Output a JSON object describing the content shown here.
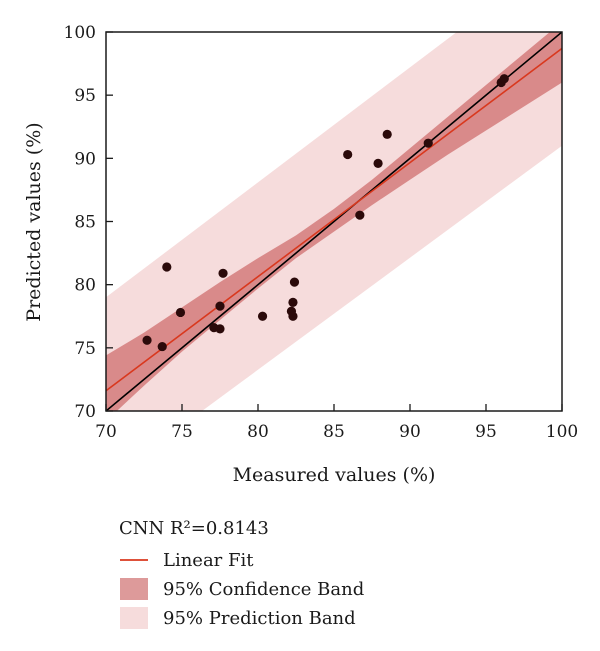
{
  "chart_data": {
    "type": "scatter",
    "xlabel": "Measured values (%)",
    "ylabel": "Predicted values (%)",
    "xlim": [
      70,
      100
    ],
    "ylim": [
      70,
      100
    ],
    "xticks": [
      "70",
      "75",
      "80",
      "85",
      "90",
      "95",
      "100"
    ],
    "yticks": [
      "70",
      "75",
      "80",
      "85",
      "90",
      "95",
      "100"
    ],
    "grid": false,
    "legend_position": "bottom-left, below plot",
    "legend_title": "CNN R²=0.8143",
    "points": [
      {
        "x": 72.7,
        "y": 75.6
      },
      {
        "x": 73.7,
        "y": 75.1
      },
      {
        "x": 74.0,
        "y": 81.4
      },
      {
        "x": 74.9,
        "y": 77.8
      },
      {
        "x": 77.1,
        "y": 76.6
      },
      {
        "x": 77.5,
        "y": 76.5
      },
      {
        "x": 77.5,
        "y": 78.3
      },
      {
        "x": 77.7,
        "y": 80.9
      },
      {
        "x": 80.3,
        "y": 77.5
      },
      {
        "x": 82.2,
        "y": 77.9
      },
      {
        "x": 82.3,
        "y": 77.5
      },
      {
        "x": 82.3,
        "y": 78.6
      },
      {
        "x": 82.4,
        "y": 80.2
      },
      {
        "x": 85.9,
        "y": 90.3
      },
      {
        "x": 86.7,
        "y": 85.5
      },
      {
        "x": 87.9,
        "y": 89.6
      },
      {
        "x": 88.5,
        "y": 91.9
      },
      {
        "x": 91.2,
        "y": 91.2
      },
      {
        "x": 96.0,
        "y": 96.0
      },
      {
        "x": 96.2,
        "y": 96.3
      }
    ],
    "identity_line": {
      "x": [
        70,
        100
      ],
      "y": [
        70,
        100
      ]
    },
    "linear_fit": {
      "x": [
        70,
        100
      ],
      "y": [
        71.6,
        98.7
      ]
    },
    "confidence_band": {
      "x": [
        70,
        72.5,
        75,
        77.5,
        80,
        82.5,
        85,
        87.5,
        90,
        92.5,
        95,
        97.5,
        100
      ],
      "lower": [
        69.2,
        72.0,
        74.7,
        77.2,
        79.7,
        82.1,
        84.2,
        86.3,
        88.3,
        90.3,
        92.2,
        94.1,
        96.0
      ],
      "upper": [
        74.4,
        76.2,
        78.2,
        80.2,
        82.1,
        83.9,
        86.0,
        88.3,
        90.8,
        93.3,
        95.8,
        98.3,
        100.8
      ]
    },
    "prediction_band": {
      "x": [
        70,
        100
      ],
      "lower": [
        64.4,
        91.0
      ],
      "upper": [
        79.0,
        106.3
      ]
    },
    "colors": {
      "points": "#2b0a0a",
      "identity_line": "#000000",
      "linear_fit": "#d9381e",
      "confidence_band": "#d98a8a",
      "prediction_band": "#f6dcdc"
    },
    "legend": [
      {
        "label": "Linear Fit",
        "kind": "line",
        "color": "#d9381e"
      },
      {
        "label": "95% Confidence Band",
        "kind": "box",
        "color": "#dd9a9a"
      },
      {
        "label": "95% Prediction Band",
        "kind": "box",
        "color": "#f6dcdc"
      }
    ]
  }
}
